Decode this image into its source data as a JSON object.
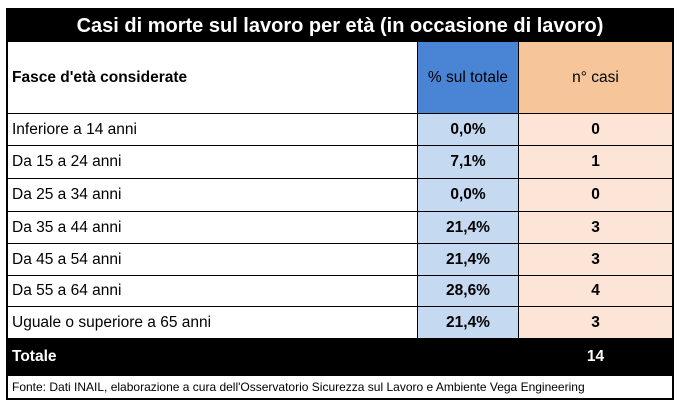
{
  "table": {
    "title": "Casi di morte sul lavoro per età (in occasione di lavoro)",
    "headers": {
      "age_band": "Fasce d'età considerate",
      "percent": "% sul totale",
      "cases": "n° casi"
    },
    "rows": [
      {
        "label": "Inferiore a 14 anni",
        "percent": "0,0%",
        "cases": "0"
      },
      {
        "label": "Da 15 a 24 anni",
        "percent": "7,1%",
        "cases": "1"
      },
      {
        "label": "Da 25 a 34 anni",
        "percent": "0,0%",
        "cases": "0"
      },
      {
        "label": "Da 35 a 44 anni",
        "percent": "21,4%",
        "cases": "3"
      },
      {
        "label": "Da 45 a 54 anni",
        "percent": "21,4%",
        "cases": "3"
      },
      {
        "label": "Da 55 a 64 anni",
        "percent": "28,6%",
        "cases": "4"
      },
      {
        "label": "Uguale o superiore a 65 anni",
        "percent": "21,4%",
        "cases": "3"
      }
    ],
    "total": {
      "label": "Totale",
      "cases": "14"
    },
    "source": "Fonte: Dati INAIL, elaborazione a cura dell'Osservatorio Sicurezza sul Lavoro e Ambiente Vega Engineering"
  },
  "colors": {
    "header_percent_bg": "#4a84d4",
    "header_cases_bg": "#f7c59a",
    "percent_cell_bg": "#c5d9f1",
    "cases_cell_bg": "#fce4d6",
    "title_bg": "#000000"
  }
}
